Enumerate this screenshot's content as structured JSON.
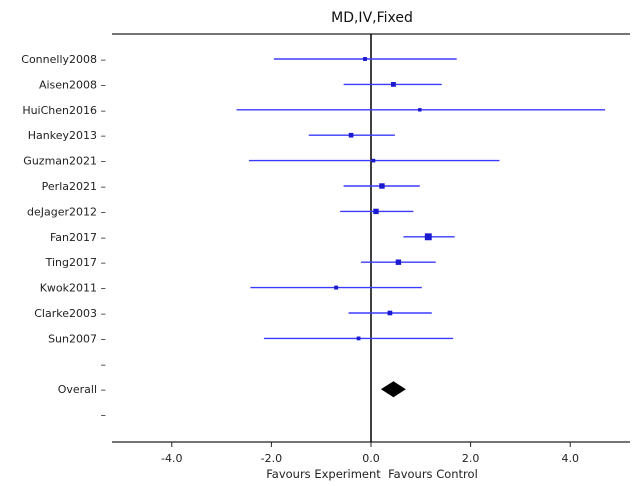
{
  "chart_data": {
    "type": "forest",
    "title": "MD,IV,Fixed",
    "xlabel": "Favours Experiment  Favours Control",
    "xlim": [
      -5.2,
      5.2
    ],
    "xticks": [
      -4.0,
      -2.0,
      0.0,
      2.0,
      4.0
    ],
    "xtick_labels": [
      "-4.0",
      "-2.0",
      "0.0",
      "2.0",
      "4.0"
    ],
    "reference_line": 0,
    "colors": {
      "ci": "#3b3bff",
      "point": "#1a1ad0",
      "overall": "#000000",
      "axis": "#222222"
    },
    "studies": [
      {
        "name": "Connelly2008",
        "estimate": -0.12,
        "lower": -1.95,
        "upper": 1.72,
        "weight": 1
      },
      {
        "name": "Aisen2008",
        "estimate": 0.45,
        "lower": -0.55,
        "upper": 1.42,
        "weight": 1.6
      },
      {
        "name": "HuiChen2016",
        "estimate": 0.98,
        "lower": -2.7,
        "upper": 4.7,
        "weight": 0.7
      },
      {
        "name": "Hankey2013",
        "estimate": -0.4,
        "lower": -1.25,
        "upper": 0.48,
        "weight": 1.5
      },
      {
        "name": "Guzman2021",
        "estimate": 0.05,
        "lower": -2.45,
        "upper": 2.58,
        "weight": 0.8
      },
      {
        "name": "Perla2021",
        "estimate": 0.22,
        "lower": -0.55,
        "upper": 0.98,
        "weight": 2
      },
      {
        "name": "deJager2012",
        "estimate": 0.1,
        "lower": -0.62,
        "upper": 0.85,
        "weight": 2
      },
      {
        "name": "Fan2017",
        "estimate": 1.15,
        "lower": 0.65,
        "upper": 1.68,
        "weight": 3
      },
      {
        "name": "Ting2017",
        "estimate": 0.55,
        "lower": -0.2,
        "upper": 1.3,
        "weight": 2
      },
      {
        "name": "Kwok2011",
        "estimate": -0.7,
        "lower": -2.42,
        "upper": 1.02,
        "weight": 1
      },
      {
        "name": "Clarke2003",
        "estimate": 0.38,
        "lower": -0.45,
        "upper": 1.22,
        "weight": 1.5
      },
      {
        "name": "Sun2007",
        "estimate": -0.25,
        "lower": -2.15,
        "upper": 1.65,
        "weight": 0.9
      }
    ],
    "overall": {
      "name": "Overall",
      "estimate": 0.45,
      "lower": 0.2,
      "upper": 0.7
    }
  }
}
